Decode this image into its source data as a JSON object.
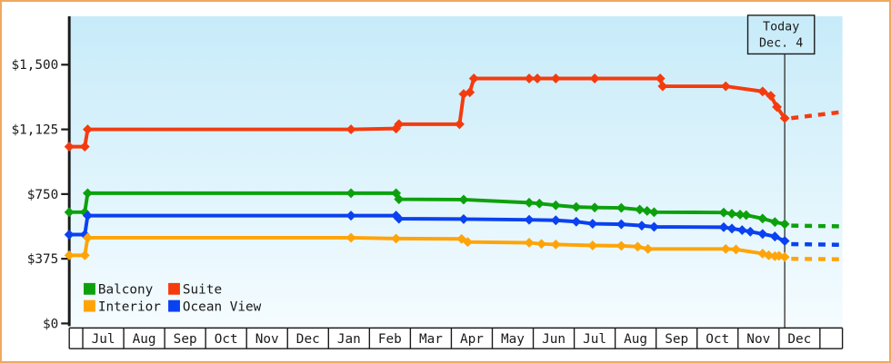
{
  "chart_data": {
    "type": "line",
    "title": "",
    "y_axis": {
      "ticks": [
        {
          "label": "$0",
          "value": 0
        },
        {
          "label": "$375",
          "value": 375
        },
        {
          "label": "$750",
          "value": 750
        },
        {
          "label": "$1,125",
          "value": 1125
        },
        {
          "label": "$1,500",
          "value": 1500
        }
      ],
      "range": [
        0,
        1600
      ]
    },
    "x_axis": {
      "months": [
        "Jul",
        "Aug",
        "Sep",
        "Oct",
        "Nov",
        "Dec",
        "Jan",
        "Feb",
        "Mar",
        "Apr",
        "May",
        "Jun",
        "Jul",
        "Aug",
        "Sep",
        "Oct",
        "Nov",
        "Dec"
      ]
    },
    "today_marker": {
      "label_line1": "Today",
      "label_line2": "Dec. 4",
      "month_offset": 17.14
    },
    "legend": [
      {
        "label": "Balcony",
        "color": "#0ca10c"
      },
      {
        "label": "Suite",
        "color": "#f53b0e"
      },
      {
        "label": "Interior",
        "color": "#ffa408"
      },
      {
        "label": "Ocean View",
        "color": "#0a41f0"
      }
    ],
    "series": [
      {
        "name": "Suite",
        "color": "#f53b0e",
        "points": [
          [
            -0.33,
            1025
          ],
          [
            0.05,
            1025
          ],
          [
            0.12,
            1125
          ],
          [
            6.55,
            1125
          ],
          [
            7.65,
            1130
          ],
          [
            7.72,
            1155
          ],
          [
            9.2,
            1155
          ],
          [
            9.3,
            1330
          ],
          [
            9.45,
            1340
          ],
          [
            9.55,
            1420
          ],
          [
            10.9,
            1420
          ],
          [
            11.1,
            1420
          ],
          [
            11.55,
            1420
          ],
          [
            12.5,
            1420
          ],
          [
            14.1,
            1420
          ],
          [
            14.16,
            1375
          ],
          [
            15.7,
            1375
          ],
          [
            16.6,
            1345
          ],
          [
            16.8,
            1320
          ],
          [
            16.95,
            1255
          ],
          [
            17.14,
            1190
          ]
        ],
        "projection": [
          [
            17.3,
            1190
          ],
          [
            18.5,
            1225
          ]
        ]
      },
      {
        "name": "Balcony",
        "color": "#0ca10c",
        "points": [
          [
            -0.33,
            645
          ],
          [
            0.05,
            645
          ],
          [
            0.12,
            755
          ],
          [
            6.55,
            755
          ],
          [
            7.65,
            755
          ],
          [
            7.72,
            720
          ],
          [
            9.3,
            718
          ],
          [
            10.9,
            700
          ],
          [
            11.15,
            695
          ],
          [
            11.55,
            685
          ],
          [
            12.05,
            675
          ],
          [
            12.5,
            672
          ],
          [
            13.15,
            670
          ],
          [
            13.6,
            660
          ],
          [
            13.78,
            652
          ],
          [
            13.95,
            645
          ],
          [
            15.65,
            643
          ],
          [
            15.85,
            636
          ],
          [
            16.05,
            631
          ],
          [
            16.2,
            628
          ],
          [
            16.6,
            608
          ],
          [
            16.9,
            588
          ],
          [
            17.14,
            576
          ]
        ],
        "projection": [
          [
            17.3,
            567
          ],
          [
            18.5,
            563
          ]
        ]
      },
      {
        "name": "Ocean View",
        "color": "#0a41f0",
        "points": [
          [
            -0.33,
            515
          ],
          [
            0.05,
            515
          ],
          [
            0.12,
            625
          ],
          [
            6.55,
            625
          ],
          [
            7.65,
            625
          ],
          [
            7.72,
            607
          ],
          [
            9.3,
            605
          ],
          [
            10.9,
            601
          ],
          [
            11.55,
            598
          ],
          [
            12.05,
            590
          ],
          [
            12.45,
            578
          ],
          [
            13.15,
            575
          ],
          [
            13.65,
            567
          ],
          [
            13.95,
            560
          ],
          [
            15.65,
            558
          ],
          [
            15.85,
            550
          ],
          [
            16.1,
            541
          ],
          [
            16.3,
            532
          ],
          [
            16.6,
            519
          ],
          [
            16.9,
            504
          ],
          [
            17.14,
            478
          ]
        ],
        "projection": [
          [
            17.3,
            460
          ],
          [
            18.5,
            456
          ]
        ]
      },
      {
        "name": "Interior",
        "color": "#ffa408",
        "points": [
          [
            -0.33,
            395
          ],
          [
            0.05,
            395
          ],
          [
            0.12,
            497
          ],
          [
            6.55,
            497
          ],
          [
            7.65,
            492
          ],
          [
            9.25,
            490
          ],
          [
            9.4,
            472
          ],
          [
            10.9,
            468
          ],
          [
            11.2,
            461
          ],
          [
            11.55,
            458
          ],
          [
            12.45,
            452
          ],
          [
            13.15,
            450
          ],
          [
            13.55,
            445
          ],
          [
            13.8,
            432
          ],
          [
            15.7,
            432
          ],
          [
            15.95,
            429
          ],
          [
            16.6,
            405
          ],
          [
            16.75,
            395
          ],
          [
            16.9,
            390
          ],
          [
            17.0,
            392
          ],
          [
            17.14,
            385
          ]
        ],
        "projection": [
          [
            17.3,
            375
          ],
          [
            18.5,
            372
          ]
        ]
      }
    ],
    "layout": {
      "plot_bg_top_color": "#c7ebf9",
      "plot_bg_bottom_color": "#f5fcff",
      "axis_color": "#1a1a1a",
      "frame_border_color": "#efa95f",
      "today_line_color": "#3a3a3a",
      "grid": "off",
      "legend_position": "bottom-left-inside"
    }
  }
}
